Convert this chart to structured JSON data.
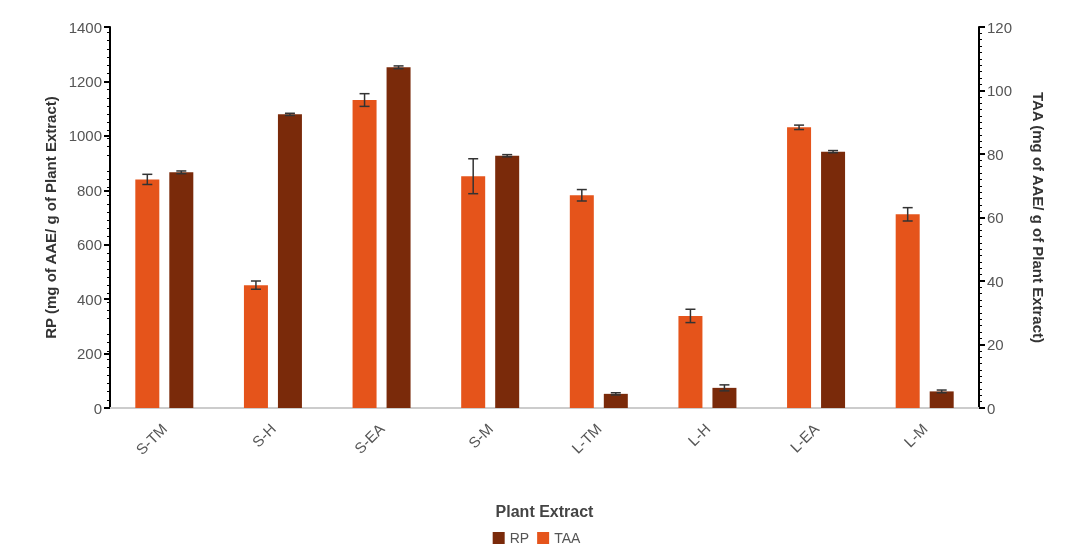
{
  "chart_data": {
    "type": "bar",
    "xlabel": "Plant Extract",
    "ylabel": "RP (mg of AAE/ g of Plant Extract)",
    "y2label": "TAA (mg of AAE/ g of Plant Extract)",
    "categories": [
      "S-TM",
      "S-H",
      "S-EA",
      "S-M",
      "L-TM",
      "L-H",
      "L-EA",
      "L-M"
    ],
    "series": [
      {
        "name": "RP",
        "color": "#7a2a0a",
        "values": [
          866,
          1079,
          1252,
          927,
          52,
          74,
          942,
          61
        ],
        "errors": [
          5,
          4,
          5,
          4,
          4,
          11,
          4,
          5
        ]
      },
      {
        "name": "TAA",
        "color": "#e5541b",
        "axis": "y2",
        "values": [
          72,
          38.7,
          97,
          73,
          67,
          29,
          88.4,
          61
        ],
        "errors": [
          1.6,
          1.3,
          2,
          5.5,
          1.8,
          2.1,
          0.7,
          2.1
        ]
      }
    ],
    "ylim": [
      0,
      1400
    ],
    "yticks": [
      0,
      200,
      400,
      600,
      800,
      1000,
      1200,
      1400
    ],
    "y2lim": [
      0,
      120
    ],
    "y2ticks": [
      0,
      20,
      40,
      60,
      80,
      100,
      120
    ],
    "grid": false,
    "legend": "bottom"
  }
}
